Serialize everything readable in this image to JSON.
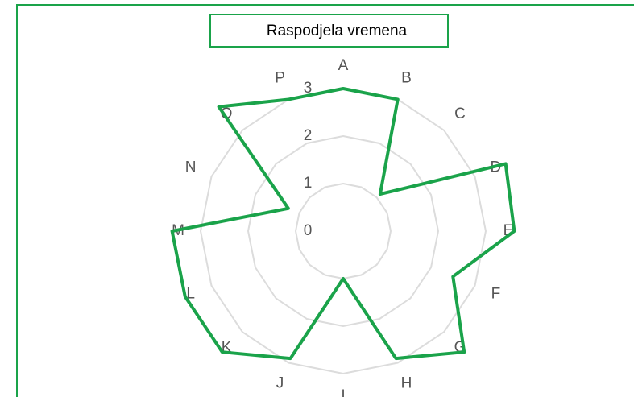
{
  "chart_data": {
    "type": "radar",
    "title": "Raspodjela vremena",
    "categories": [
      "A",
      "B",
      "C",
      "D",
      "E",
      "F",
      "G",
      "H",
      "I",
      "J",
      "K",
      "L",
      "M",
      "N",
      "O",
      "P"
    ],
    "series": [
      {
        "color": "#1aa34a",
        "values": [
          3,
          3,
          1.1,
          3.7,
          3.6,
          2.5,
          3.6,
          2.9,
          1,
          2.9,
          3.6,
          3.6,
          3.6,
          1.25,
          3.7,
          3
        ]
      }
    ],
    "ylim": [
      0,
      4
    ],
    "yticks": [
      0,
      1,
      2,
      3
    ],
    "grid": true
  }
}
